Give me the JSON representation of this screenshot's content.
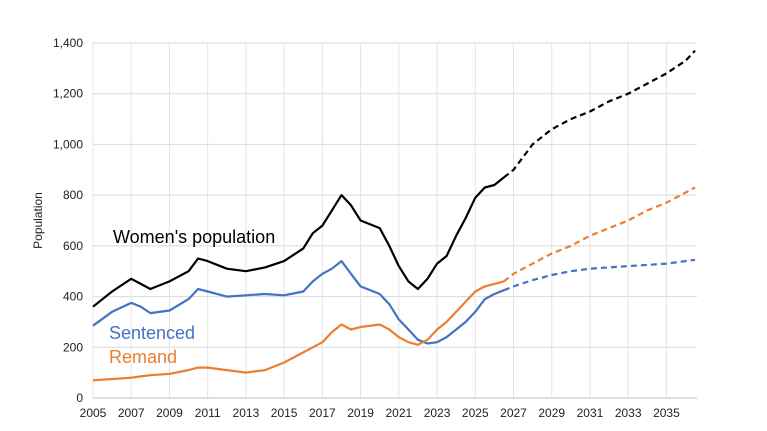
{
  "chart_data": {
    "type": "line",
    "ylabel": "Population",
    "xlabel": "",
    "ylim": [
      0,
      1400
    ],
    "xlim": [
      2005,
      2036.6
    ],
    "y_ticks": [
      "0",
      "200",
      "400",
      "600",
      "800",
      "1,000",
      "1,200",
      "1,400"
    ],
    "x_ticks": [
      "2005",
      "2007",
      "2009",
      "2011",
      "2013",
      "2015",
      "2017",
      "2019",
      "2021",
      "2023",
      "2025",
      "2027",
      "2029",
      "2031",
      "2033",
      "2035"
    ],
    "grid": true,
    "legend": "inline labels",
    "projection_start": 2026.5,
    "series": [
      {
        "name": "Women's population",
        "color": "#000000",
        "x": [
          2005,
          2006,
          2007,
          2007.5,
          2008,
          2009,
          2010,
          2010.5,
          2011,
          2012,
          2013,
          2014,
          2015,
          2016,
          2016.5,
          2017,
          2017.5,
          2018,
          2018.5,
          2019,
          2020,
          2020.5,
          2021,
          2021.5,
          2022,
          2022.5,
          2023,
          2023.5,
          2024,
          2024.5,
          2025,
          2025.5,
          2026,
          2026.5,
          2027,
          2028,
          2029,
          2030,
          2031,
          2032,
          2033,
          2034,
          2035,
          2036,
          2036.5
        ],
        "values": [
          360,
          420,
          470,
          450,
          430,
          460,
          500,
          550,
          540,
          510,
          500,
          515,
          540,
          590,
          650,
          680,
          740,
          800,
          760,
          700,
          670,
          600,
          520,
          460,
          430,
          470,
          530,
          560,
          640,
          710,
          790,
          830,
          840,
          870,
          900,
          1000,
          1060,
          1100,
          1130,
          1170,
          1200,
          1240,
          1280,
          1330,
          1370
        ]
      },
      {
        "name": "Sentenced",
        "color": "#4472C4",
        "x": [
          2005,
          2006,
          2007,
          2007.5,
          2008,
          2009,
          2010,
          2010.5,
          2011,
          2012,
          2013,
          2014,
          2015,
          2016,
          2016.5,
          2017,
          2017.5,
          2018,
          2018.5,
          2019,
          2020,
          2020.5,
          2021,
          2021.5,
          2022,
          2022.5,
          2023,
          2023.5,
          2024,
          2024.5,
          2025,
          2025.5,
          2026,
          2026.5,
          2027,
          2028,
          2029,
          2030,
          2031,
          2032,
          2033,
          2034,
          2035,
          2036,
          2036.5
        ],
        "values": [
          285,
          340,
          375,
          360,
          335,
          345,
          390,
          430,
          420,
          400,
          405,
          410,
          405,
          420,
          460,
          490,
          510,
          540,
          490,
          440,
          410,
          370,
          310,
          270,
          230,
          215,
          220,
          240,
          270,
          300,
          340,
          390,
          410,
          425,
          440,
          465,
          485,
          500,
          510,
          515,
          520,
          525,
          530,
          540,
          545
        ]
      },
      {
        "name": "Remand",
        "color": "#ED7D31",
        "x": [
          2005,
          2006,
          2007,
          2007.5,
          2008,
          2009,
          2010,
          2010.5,
          2011,
          2012,
          2013,
          2014,
          2015,
          2016,
          2016.5,
          2017,
          2017.5,
          2018,
          2018.5,
          2019,
          2020,
          2020.5,
          2021,
          2021.5,
          2022,
          2022.5,
          2023,
          2023.5,
          2024,
          2024.5,
          2025,
          2025.5,
          2026,
          2026.5,
          2027,
          2028,
          2029,
          2030,
          2031,
          2032,
          2033,
          2034,
          2035,
          2036,
          2036.5
        ],
        "values": [
          70,
          75,
          80,
          85,
          90,
          95,
          110,
          120,
          120,
          110,
          100,
          110,
          140,
          180,
          200,
          220,
          260,
          290,
          270,
          280,
          290,
          270,
          240,
          220,
          210,
          230,
          270,
          300,
          340,
          380,
          420,
          440,
          450,
          460,
          490,
          530,
          570,
          600,
          640,
          670,
          700,
          740,
          770,
          810,
          830
        ]
      }
    ]
  },
  "labels": {
    "women": "Women's population",
    "sentenced": "Sentenced",
    "remand": "Remand"
  }
}
